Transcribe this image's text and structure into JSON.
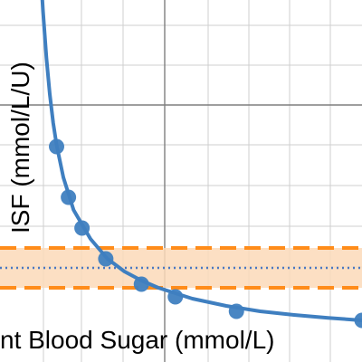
{
  "chart_data": {
    "type": "line",
    "xlabel": "nt Blood Sugar (mmol/L)",
    "ylabel": "ISF (mmol/L/U)",
    "xlim": [
      0,
      10
    ],
    "ylim": [
      0,
      10
    ],
    "grid": true,
    "curve": {
      "color": "#3f7fc0",
      "x": [
        0.55,
        0.6,
        0.7,
        0.8,
        0.9,
        1.0,
        1.2,
        1.5,
        2.0,
        2.5,
        3.0,
        3.5,
        4.0,
        5.0,
        6.0,
        7.0,
        8.0,
        9.0,
        10.0
      ],
      "y": [
        10.0,
        9.2,
        7.9,
        6.9,
        6.1,
        5.5,
        4.6,
        3.7,
        2.9,
        2.35,
        2.0,
        1.75,
        1.55,
        1.25,
        1.05,
        0.9,
        0.8,
        0.72,
        0.65
      ]
    },
    "points": {
      "color": "#3f7fc0",
      "x": [
        1.0,
        1.35,
        1.75,
        2.45,
        3.5,
        4.5,
        6.3,
        10.0
      ],
      "y": [
        5.45,
        4.05,
        3.2,
        2.35,
        1.65,
        1.3,
        0.9,
        0.65
      ]
    },
    "band": {
      "color": "#ff8c1a",
      "fill": "#fcd9b8",
      "low": 1.55,
      "high": 2.65,
      "center": 2.1,
      "center_color": "#4a78c2"
    }
  }
}
